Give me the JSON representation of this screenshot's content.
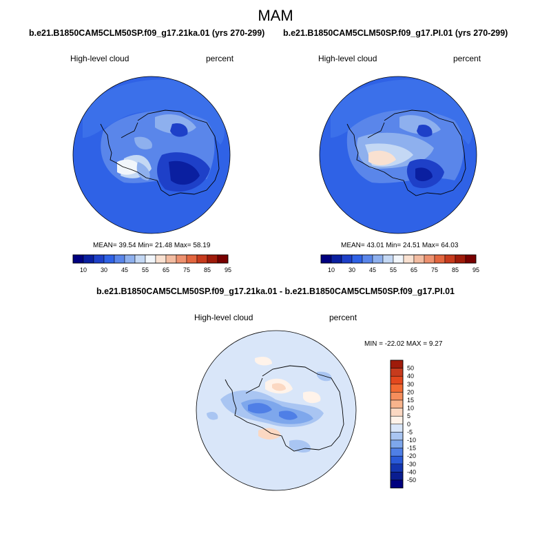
{
  "figure": {
    "title": "MAM",
    "diff_title": "b.e21.B1850CAM5CLM50SP.f09_g17.21ka.01 - b.e21.B1850CAM5CLM50SP.f09_g17.PI.01"
  },
  "panels": {
    "left": {
      "case": "b.e21.B1850CAM5CLM50SP.f09_g17.21ka.01 (yrs 270-299)",
      "variable": "High-level cloud",
      "units": "percent",
      "stats": "MEAN=  39.54  Min=  21.48  Max=  58.19"
    },
    "right": {
      "case": "b.e21.B1850CAM5CLM50SP.f09_g17.PI.01 (yrs 270-299)",
      "variable": "High-level cloud",
      "units": "percent",
      "stats": "MEAN=  43.01  Min=  24.51  Max=  64.03"
    },
    "diff": {
      "variable": "High-level cloud",
      "units": "percent",
      "stats": "MIN = -22.02 MAX =   9.27"
    }
  },
  "colorbar_abs": {
    "labels": [
      "10",
      "30",
      "45",
      "55",
      "65",
      "75",
      "85",
      "95"
    ],
    "colors": [
      "#00007f",
      "#0a1fa0",
      "#1e40c8",
      "#2f62e6",
      "#5a86ea",
      "#8eb0ee",
      "#c4d8f4",
      "#f2f6fb",
      "#f9e1d1",
      "#f3bca1",
      "#ee916f",
      "#e3663f",
      "#c73b1d",
      "#9f1b0a",
      "#780000"
    ]
  },
  "colorbar_diff": {
    "labels": [
      "50",
      "40",
      "30",
      "20",
      "15",
      "10",
      "5",
      "0",
      "-5",
      "-10",
      "-15",
      "-20",
      "-30",
      "-40",
      "-50"
    ],
    "colors": [
      "#9f1b0a",
      "#c73b1d",
      "#e3481e",
      "#f26a32",
      "#f58e5c",
      "#f8b48c",
      "#fbd8c2",
      "#fff3ea",
      "#d9e6f9",
      "#a9c5f2",
      "#7ea7ec",
      "#4f7fe6",
      "#2a5ad8",
      "#1436b0",
      "#0a1d90",
      "#00007f"
    ]
  }
}
